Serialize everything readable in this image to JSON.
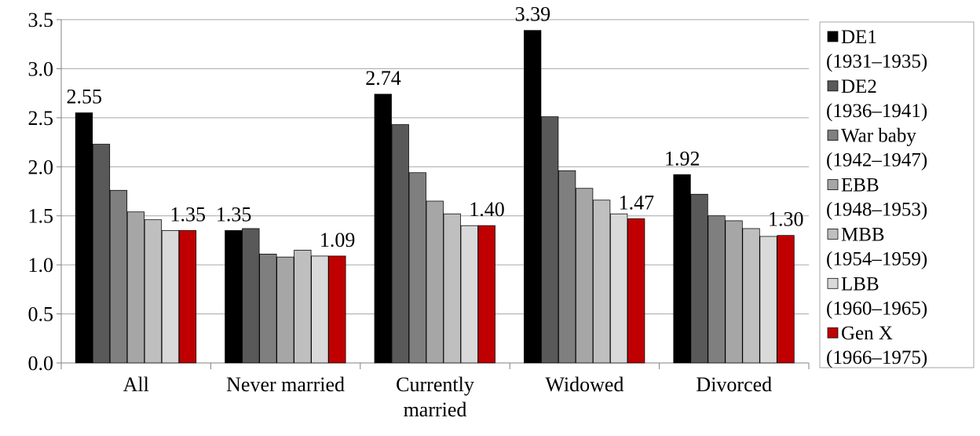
{
  "chart_data": {
    "type": "bar",
    "title": "",
    "xlabel": "",
    "ylabel": "",
    "ylim": [
      0,
      3.5
    ],
    "yticks": [
      "0.0",
      "0.5",
      "1.0",
      "1.5",
      "2.0",
      "2.5",
      "3.0",
      "3.5"
    ],
    "grid": "horizontal",
    "legend_position": "right",
    "categories": [
      [
        "All"
      ],
      [
        "Never married"
      ],
      [
        "Currently",
        "married"
      ],
      [
        "Widowed"
      ],
      [
        "Divorced"
      ]
    ],
    "series": [
      {
        "name": "DE1",
        "period": "(1931–1935)",
        "color": "#000000",
        "values": [
          2.55,
          1.35,
          2.74,
          3.39,
          1.92
        ]
      },
      {
        "name": "DE2",
        "period": "(1936–1941)",
        "color": "#595959",
        "values": [
          2.23,
          1.37,
          2.43,
          2.51,
          1.72
        ]
      },
      {
        "name": "War baby",
        "period": "(1942–1947)",
        "color": "#7f7f7f",
        "values": [
          1.76,
          1.11,
          1.94,
          1.96,
          1.5
        ]
      },
      {
        "name": "EBB",
        "period": "(1948–1953)",
        "color": "#a6a6a6",
        "values": [
          1.54,
          1.08,
          1.65,
          1.78,
          1.45
        ]
      },
      {
        "name": "MBB",
        "period": "(1954–1959)",
        "color": "#bfbfbf",
        "values": [
          1.46,
          1.15,
          1.52,
          1.66,
          1.37
        ]
      },
      {
        "name": "LBB",
        "period": "(1960–1965)",
        "color": "#d9d9d9",
        "values": [
          1.35,
          1.09,
          1.4,
          1.52,
          1.29
        ]
      },
      {
        "name": "Gen X",
        "period": "(1966–1975)",
        "color": "#c00000",
        "values": [
          1.35,
          1.09,
          1.4,
          1.47,
          1.3
        ]
      }
    ],
    "data_labels": [
      {
        "series": 0,
        "category": 0,
        "text": "2.55"
      },
      {
        "series": 6,
        "category": 0,
        "text": "1.35"
      },
      {
        "series": 0,
        "category": 1,
        "text": "1.35"
      },
      {
        "series": 6,
        "category": 1,
        "text": "1.09"
      },
      {
        "series": 0,
        "category": 2,
        "text": "2.74"
      },
      {
        "series": 6,
        "category": 2,
        "text": "1.40"
      },
      {
        "series": 0,
        "category": 3,
        "text": "3.39"
      },
      {
        "series": 6,
        "category": 3,
        "text": "1.47"
      },
      {
        "series": 0,
        "category": 4,
        "text": "1.92"
      },
      {
        "series": 6,
        "category": 4,
        "text": "1.30"
      }
    ]
  }
}
